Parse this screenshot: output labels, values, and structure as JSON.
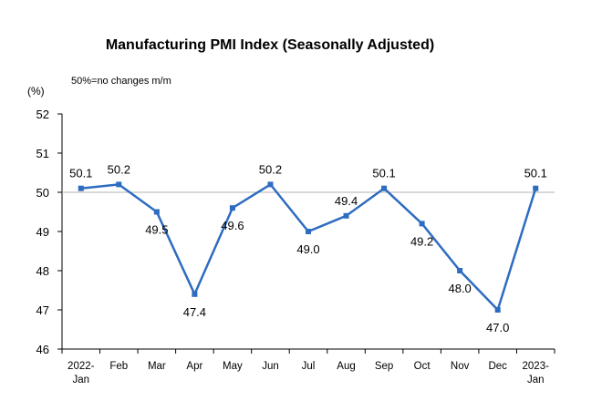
{
  "chart_data": {
    "type": "line",
    "title": "Manufacturing PMI Index (Seasonally Adjusted)",
    "unit_label": "(%)",
    "annotation": "50%=no changes m/m",
    "categories": [
      [
        "2022-",
        "Jan"
      ],
      [
        "Feb"
      ],
      [
        "Mar"
      ],
      [
        "Apr"
      ],
      [
        "May"
      ],
      [
        "Jun"
      ],
      [
        "Jul"
      ],
      [
        "Aug"
      ],
      [
        "Sep"
      ],
      [
        "Oct"
      ],
      [
        "Nov"
      ],
      [
        "Dec"
      ],
      [
        "2023-",
        "Jan"
      ]
    ],
    "values": [
      50.1,
      50.2,
      49.5,
      47.4,
      49.6,
      50.2,
      49.0,
      49.4,
      50.1,
      49.2,
      48.0,
      47.0,
      50.1
    ],
    "value_labels": [
      "50.1",
      "50.2",
      "49.5",
      "47.4",
      "49.6",
      "50.2",
      "49.0",
      "49.4",
      "50.1",
      "49.2",
      "48.0",
      "47.0",
      "50.1"
    ],
    "label_positions": [
      "above",
      "above",
      "below",
      "below",
      "below",
      "above",
      "below",
      "above",
      "above",
      "below",
      "below",
      "below",
      "above"
    ],
    "yticks": [
      "46",
      "47",
      "48",
      "49",
      "50",
      "51",
      "52"
    ],
    "ylim": [
      46,
      52
    ],
    "reference_line": 50,
    "grid": false,
    "legend": "none",
    "colors": {
      "line": "#2E6CC0",
      "marker": "#2E6CC0",
      "reference": "#b0b0b0",
      "axis": "#000000"
    }
  }
}
